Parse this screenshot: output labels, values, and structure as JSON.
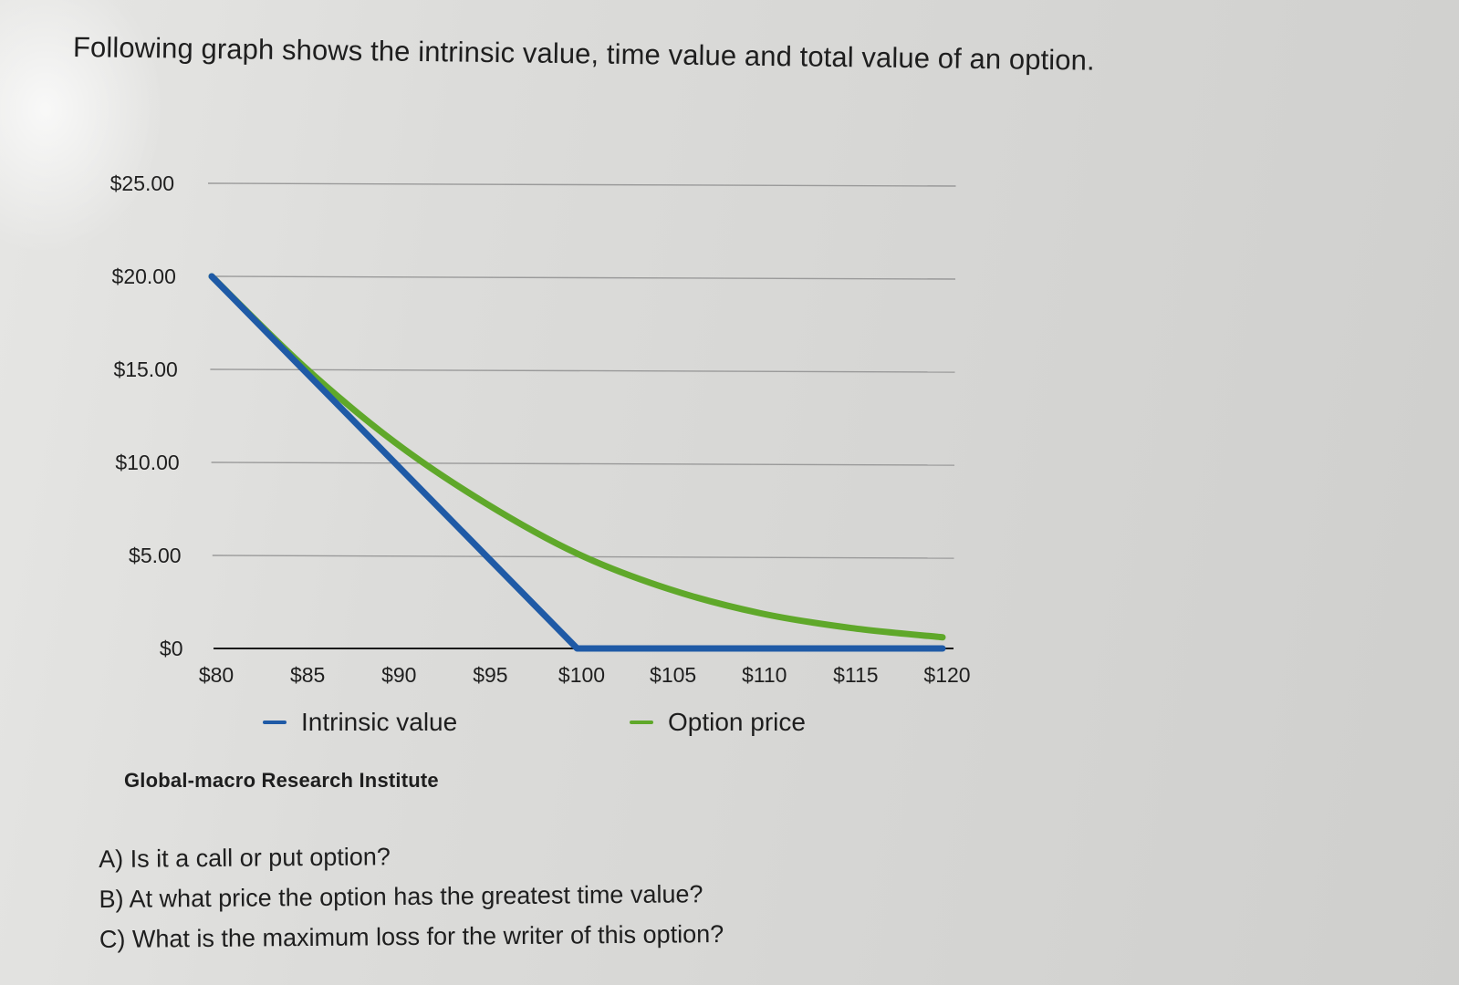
{
  "intro_text": "Following graph shows the intrinsic value, time value and total value of an option.",
  "legend": {
    "intrinsic_label": "Intrinsic value",
    "option_label": "Option price"
  },
  "source": "Global-macro Research Institute",
  "questions": [
    "A) Is it a call or put option?",
    "B) At what price the option has the greatest time value?",
    "C) What is the maximum loss for the writer of this option?"
  ],
  "colors": {
    "intrinsic": "#1f5aa6",
    "option": "#5fa82a",
    "gridline": "#9a9a9a",
    "axis": "#1a1a1a"
  },
  "chart_data": {
    "type": "line",
    "title": "",
    "xlabel": "",
    "ylabel": "",
    "x": [
      "$80",
      "$85",
      "$90",
      "$95",
      "$100",
      "$105",
      "$110",
      "$115",
      "$120"
    ],
    "x_values": [
      80,
      85,
      90,
      95,
      100,
      105,
      110,
      115,
      120
    ],
    "y_tick_labels": [
      "$0",
      "$5.00",
      "$10.00",
      "$15.00",
      "$20.00",
      "$25.00"
    ],
    "y_tick_values": [
      0,
      5,
      10,
      15,
      20,
      25
    ],
    "ylim": [
      0,
      25
    ],
    "xlim": [
      80,
      120
    ],
    "grid": true,
    "legend_position": "bottom",
    "series": [
      {
        "name": "Intrinsic value",
        "color": "#1f5aa6",
        "values": [
          20,
          15,
          10,
          5,
          0,
          0,
          0,
          0,
          0
        ]
      },
      {
        "name": "Option price",
        "color": "#5fa82a",
        "values": [
          20,
          15.2,
          11.1,
          7.8,
          5.1,
          3.2,
          1.9,
          1.1,
          0.6
        ]
      }
    ],
    "source": "Global-macro Research Institute"
  }
}
